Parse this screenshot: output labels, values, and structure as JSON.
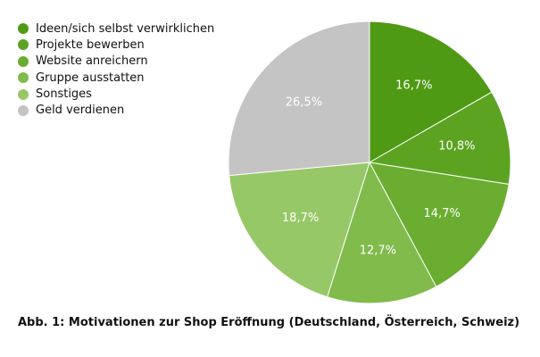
{
  "chart_data": {
    "type": "pie",
    "title": "Abb. 1: Motivationen zur Shop Eröffnung (Deutschland, Österreich, Schweiz)",
    "legend_position": "top-left",
    "slices": [
      {
        "label": "Ideen/sich selbst verwirklichen",
        "value": 16.7,
        "value_label": "16,7%",
        "color": "#4f9a14"
      },
      {
        "label": "Projekte bewerben",
        "value": 10.8,
        "value_label": "10,8%",
        "color": "#5ca322"
      },
      {
        "label": "Website anreichern",
        "value": 14.7,
        "value_label": "14,7%",
        "color": "#6aad30"
      },
      {
        "label": "Gruppe ausstatten",
        "value": 12.7,
        "value_label": "12,7%",
        "color": "#80bb4c"
      },
      {
        "label": "Sonstiges",
        "value": 18.7,
        "value_label": "18,7%",
        "color": "#97c867"
      },
      {
        "label": "Geld verdienen",
        "value": 26.5,
        "value_label": "26,5%",
        "color": "#c4c4c4"
      }
    ]
  }
}
